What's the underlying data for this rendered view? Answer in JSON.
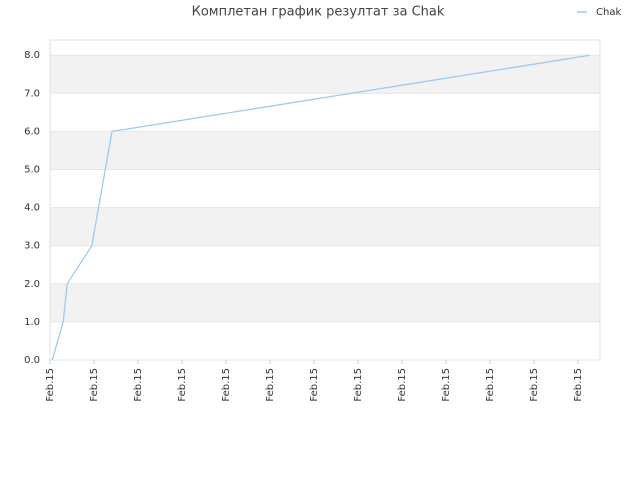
{
  "chart_data": {
    "type": "line",
    "title": "Комплетан график резултат за Chak",
    "x": [
      0.05,
      0.3,
      0.39,
      0.95,
      1.41,
      12.27
    ],
    "series": [
      {
        "name": "Chak",
        "color": "#9ccaf0",
        "values": [
          0,
          1,
          2,
          3,
          6,
          8
        ]
      }
    ],
    "xlim": [
      0,
      12.5
    ],
    "xticks": [
      {
        "value": 0,
        "label": "Feb.15"
      },
      {
        "value": 1,
        "label": "Feb.15"
      },
      {
        "value": 2,
        "label": "Feb.15"
      },
      {
        "value": 3,
        "label": "Feb.15"
      },
      {
        "value": 4,
        "label": "Feb.15"
      },
      {
        "value": 5,
        "label": "Feb.15"
      },
      {
        "value": 6,
        "label": "Feb.15"
      },
      {
        "value": 7,
        "label": "Feb.15"
      },
      {
        "value": 8,
        "label": "Feb.15"
      },
      {
        "value": 9,
        "label": "Feb.15"
      },
      {
        "value": 10,
        "label": "Feb.15"
      },
      {
        "value": 11,
        "label": "Feb.15"
      },
      {
        "value": 12,
        "label": "Feb.15"
      }
    ],
    "ylim": [
      0,
      8.4
    ],
    "yticks": [
      {
        "value": 0,
        "label": "0.0"
      },
      {
        "value": 1,
        "label": "1.0"
      },
      {
        "value": 2,
        "label": "2.0"
      },
      {
        "value": 3,
        "label": "3.0"
      },
      {
        "value": 4,
        "label": "4.0"
      },
      {
        "value": 5,
        "label": "5.0"
      },
      {
        "value": 6,
        "label": "6.0"
      },
      {
        "value": 7,
        "label": "7.0"
      },
      {
        "value": 8,
        "label": "8.0"
      }
    ],
    "grid": true,
    "legend": "top-right"
  }
}
